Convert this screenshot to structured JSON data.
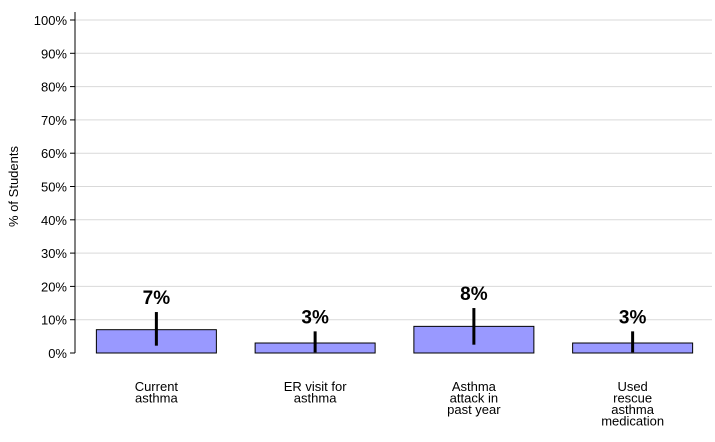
{
  "chart_data": {
    "type": "bar",
    "title": "",
    "xlabel": "",
    "ylabel": "% of Students",
    "ylim": [
      0,
      100
    ],
    "yticks": [
      "0%",
      "10%",
      "20%",
      "30%",
      "40%",
      "50%",
      "60%",
      "70%",
      "80%",
      "90%",
      "100%"
    ],
    "grid": true,
    "categories": [
      [
        "Current",
        "asthma"
      ],
      [
        "ER visit for",
        "asthma"
      ],
      [
        "Asthma",
        "attack in",
        "past year"
      ],
      [
        "Used",
        "rescue",
        "asthma",
        "medication"
      ]
    ],
    "values": [
      7,
      3,
      8,
      3
    ],
    "data_labels": [
      "7%",
      "3%",
      "8%",
      "3%"
    ],
    "error_bars": [
      [
        2.2,
        12.3
      ],
      [
        0.2,
        6.5
      ],
      [
        2.5,
        13.5
      ],
      [
        0.2,
        6.5
      ]
    ],
    "colors": {
      "bar_fill": "#9999ff",
      "bar_stroke": "#000000",
      "grid": "#d9d9d9",
      "error_bar": "#000000"
    }
  }
}
